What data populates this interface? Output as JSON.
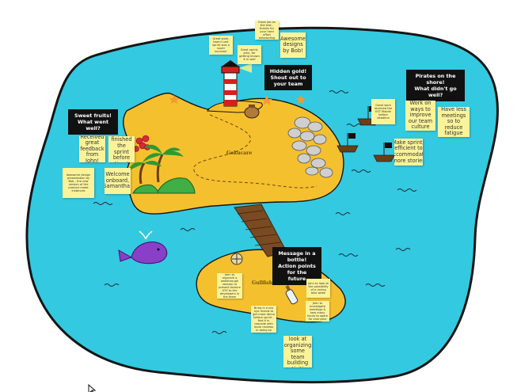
{
  "places": {
    "north_island": "Gokucare",
    "south_island": "Gullfish"
  },
  "labels": {
    "sweet_fruits": "Sweet fruits!\nWhat went well?",
    "hidden_gold": "Hidden gold!\nShout out to\nyour team",
    "pirates": "Pirates on the\nshore!\nWhat didn't go well?",
    "message_bottle": "Message in a bottle!\nAction points for the\nfuture"
  },
  "notes": {
    "received_feedback": "Received great feedback from John!",
    "finished_sprint": "We finished the sprint before time!",
    "welcome": "Welcome onboard, Samantha!",
    "awesome_designs": "Awesome designs by Bob!",
    "work_on_ways": "Work on ways to improve our team culture",
    "have_less_meetings": "Have less meetings so to reduce fatigue",
    "make_sprints": "Make sprints efficient to accommodate more stories",
    "team_building": "Bob to look at organizing some team building activities",
    "design_small": "Awesome design presentation by Bob - the new version of the product made instances",
    "gold1": "Great work, team! Last sprint was a super success!",
    "gold2": "Great sprint, John, for getting known it in well",
    "gold3": "Great job on the test - thanks for your hard effort onboarding",
    "pirate_small": "Great work received the EST Mobile before deadline",
    "bottle1": "John to organize a walkthrough session to present feature XYZ to the developers in the team",
    "bottle2": "Bring in a pro eye review to get more demo before sprint - find it in cascade with more reviews in doing so",
    "bottle3": "John to look at the possibility of a roving bike week",
    "bottle4": "John to investigate meetings & how many hours to spare for everyone"
  },
  "colors": {
    "water": "#33c9e0",
    "island": "#f5c02e",
    "note": "#fbf39a",
    "label": "#111111",
    "whale": "#8a3fc9"
  },
  "icons": [
    "lighthouse-icon",
    "palm-tree-icon",
    "hill-icon",
    "berries-icon",
    "rock-pile-icon",
    "bridge-icon",
    "whale-icon",
    "pirate-ship-icon",
    "compass-icon",
    "bottle-icon",
    "treasure-bag-icon",
    "mouse-cursor-icon"
  ]
}
